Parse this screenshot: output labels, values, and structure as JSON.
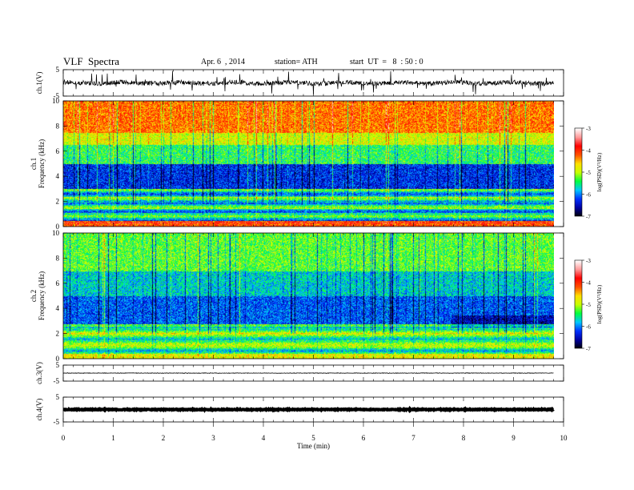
{
  "header": {
    "title": "VLF  Spectra",
    "date": "Apr. 6  , 2014",
    "station": "station= ATH",
    "start": "start  UT  =   8  : 50 : 0"
  },
  "colors": {
    "spectrogram_scale": [
      "#000000",
      "#0000a0",
      "#0030ff",
      "#00c8ff",
      "#00ff40",
      "#c8ff00",
      "#ffe000",
      "#ff5000",
      "#ff0000",
      "#ff9a9a",
      "#ffffff"
    ],
    "trace": "#000000"
  },
  "chart_data": [
    {
      "type": "line",
      "id": "ch1-waveform",
      "ylabel": "ch.1(V)",
      "ylim": [
        -5,
        5
      ],
      "yticks": [
        "5",
        "-5"
      ],
      "xlim": [
        0,
        10
      ],
      "style": "dense noisy trace around 0 with frequent spikes"
    },
    {
      "type": "heatmap",
      "id": "ch1-spectrogram",
      "ylabel": "ch.1\nFrequency  (kHz)",
      "ylim": [
        0,
        10
      ],
      "yticks": [
        "0",
        "2",
        "4",
        "6",
        "8",
        "10"
      ],
      "xlim": [
        0,
        10
      ],
      "data_extent_min": 9.8,
      "colorbar": {
        "label": "log(PSD)(V²/Hz)",
        "range": [
          -7,
          -3
        ],
        "ticks": [
          "-3",
          "-4",
          "-5",
          "-6",
          "-7"
        ]
      },
      "bands": [
        {
          "from_khz": 0,
          "to_khz": 3,
          "level": "banded green/cyan/yellow lines"
        },
        {
          "from_khz": 3,
          "to_khz": 5,
          "level": "blue to dark blue"
        },
        {
          "from_khz": 5,
          "to_khz": 7,
          "level": "green/cyan"
        },
        {
          "from_khz": 7,
          "to_khz": 10,
          "level": "yellow to red"
        }
      ]
    },
    {
      "type": "heatmap",
      "id": "ch2-spectrogram",
      "ylabel": "ch.2\nFrequency  (kHz)",
      "ylim": [
        0,
        10
      ],
      "yticks": [
        "0",
        "2",
        "4",
        "6",
        "8",
        "10"
      ],
      "xlim": [
        0,
        10
      ],
      "data_extent_min": 9.8,
      "colorbar": {
        "label": "log(PSD)(V²/Hz)",
        "range": [
          -7,
          -3
        ],
        "ticks": [
          "-3",
          "-4",
          "-5",
          "-6",
          "-7"
        ]
      },
      "bands": [
        {
          "from_khz": 0,
          "to_khz": 3,
          "level": "green/yellow with orange lines"
        },
        {
          "from_khz": 3,
          "to_khz": 7,
          "level": "blue/cyan"
        },
        {
          "from_khz": 7,
          "to_khz": 10,
          "level": "green/yellow with dark streaks"
        }
      ]
    },
    {
      "type": "line",
      "id": "ch3-waveform",
      "ylabel": "ch.3(V)",
      "ylim": [
        -5,
        5
      ],
      "yticks": [
        "5",
        "-5"
      ],
      "xlim": [
        0,
        10
      ],
      "style": "thin flat trace near 0"
    },
    {
      "type": "line",
      "id": "ch4-waveform",
      "ylabel": "ch.4(V)",
      "ylim": [
        -5,
        5
      ],
      "yticks": [
        "5",
        "-5"
      ],
      "xlim": [
        0,
        10
      ],
      "style": "thick flat trace near 0"
    }
  ],
  "xaxis": {
    "label": "Time  (min)",
    "ticks": [
      "0",
      "1",
      "2",
      "3",
      "4",
      "5",
      "6",
      "7",
      "8",
      "9",
      "10"
    ]
  }
}
